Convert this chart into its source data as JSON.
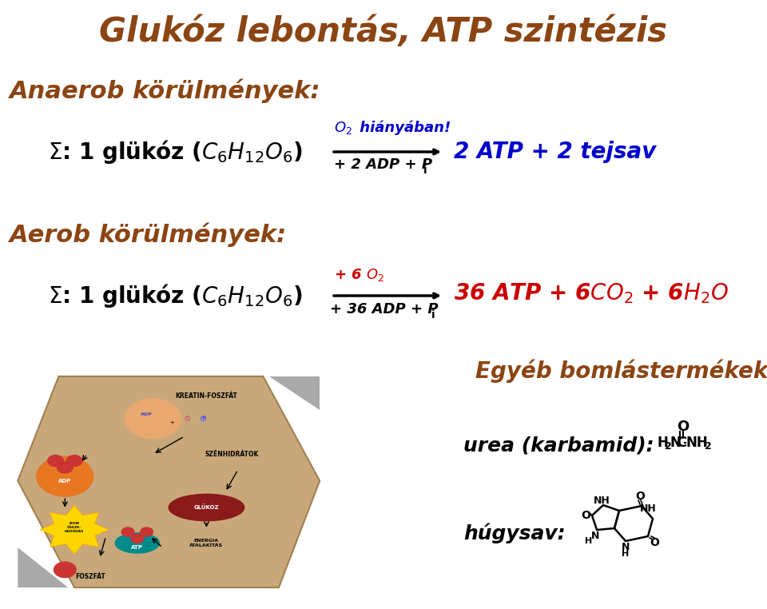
{
  "title": "Glukóz lebontás, ATP szintézis",
  "title_color": "#8B4513",
  "title_fontsize": 30,
  "bg_color": "#FFFFFF",
  "anaerob_label": "Anaerob körülmények:",
  "aerob_label": "Aerob körülmények:",
  "section_color": "#8B4513",
  "section_fontsize": 22,
  "anaerob_above_color": "#0000CC",
  "anaerob_result_color": "#0000CC",
  "aerob_above_color": "#CC0000",
  "aerob_result_color": "#CC0000",
  "egyeb_label": "Egyéb bomlástermékek:",
  "egyeb_color": "#8B4513",
  "egyeb_fontsize": 20,
  "urea_label": "urea (karbamid):",
  "hugysav_label": "húgysav:",
  "label_color": "#000000",
  "label_fontsize": 18
}
